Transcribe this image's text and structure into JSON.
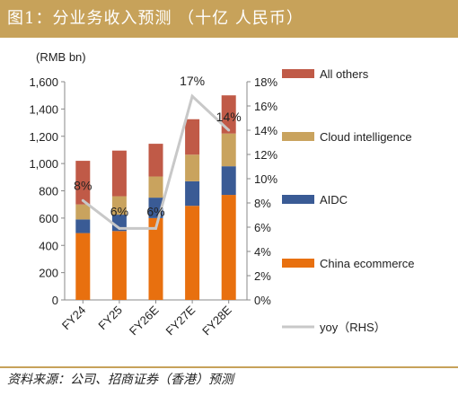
{
  "figure_title": "图1：分业务收入预测 （十亿 人民币）",
  "source": "资料来源：公司、招商证券（香港）预测",
  "chart_data": {
    "type": "bar",
    "stacked": true,
    "categories": [
      "FY24",
      "FY25",
      "FY26E",
      "FY27E",
      "FY28E"
    ],
    "y_unit_label": "(RMB bn)",
    "ylim": [
      0,
      1600
    ],
    "yticks": [
      "0",
      "200",
      "400",
      "600",
      "800",
      "1,000",
      "1,200",
      "1,400",
      "1,600"
    ],
    "y2lim": [
      0,
      18
    ],
    "y2ticks": [
      "0%",
      "2%",
      "4%",
      "6%",
      "8%",
      "10%",
      "12%",
      "14%",
      "16%",
      "18%"
    ],
    "series": [
      {
        "name": "China ecommerce",
        "color": "#e8700f",
        "values": [
          490,
          505,
          600,
          690,
          770
        ]
      },
      {
        "name": "AIDC",
        "color": "#3a5b95",
        "values": [
          100,
          120,
          150,
          180,
          210
        ]
      },
      {
        "name": "Cloud intelligence",
        "color": "#c9a35e",
        "values": [
          110,
          135,
          155,
          195,
          240
        ]
      },
      {
        "name": "All others",
        "color": "#c05a47",
        "values": [
          320,
          335,
          240,
          260,
          280
        ]
      }
    ],
    "line": {
      "name": "yoy（RHS）",
      "color": "#c8c8c8",
      "values": [
        8.2,
        5.9,
        5.9,
        16.8,
        14.0
      ],
      "labels": [
        "8%",
        "6%",
        "6%",
        "17%",
        "14%"
      ]
    },
    "legend_order": [
      "All others",
      "Cloud intelligence",
      "AIDC",
      "China ecommerce",
      "yoy（RHS）"
    ]
  }
}
